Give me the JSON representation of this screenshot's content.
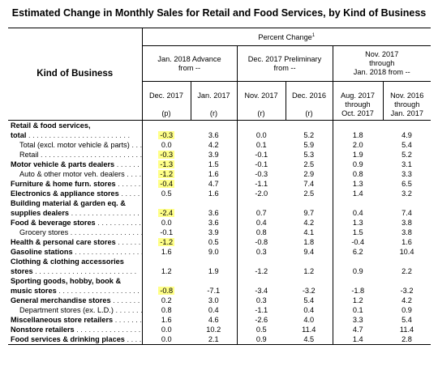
{
  "title": "Estimated Change in Monthly Sales for Retail and Food Services, by Kind of Business",
  "header": {
    "kind_of_business": "Kind of Business",
    "percent_change": "Percent Change",
    "footnote_mark": "1",
    "groups": [
      {
        "line1": "Jan. 2018 Advance",
        "line2": "from --"
      },
      {
        "line1": "Dec. 2017 Preliminary",
        "line2": "from --"
      },
      {
        "line1": "Nov. 2017",
        "line2": "through",
        "line3": "Jan. 2018 from --"
      }
    ],
    "subcols": [
      {
        "line1": "Dec. 2017",
        "line2": "",
        "line3": "(p)"
      },
      {
        "line1": "Jan. 2017",
        "line2": "",
        "line3": "(r)"
      },
      {
        "line1": "Nov. 2017",
        "line2": "",
        "line3": "(r)"
      },
      {
        "line1": "Dec. 2016",
        "line2": "",
        "line3": "(r)"
      },
      {
        "line1": "Aug. 2017",
        "line2": "through",
        "line3": "Oct. 2017"
      },
      {
        "line1": "Nov. 2016",
        "line2": "through",
        "line3": "Jan. 2017"
      }
    ]
  },
  "rows": [
    {
      "label": "Retail & food services,",
      "label2": "total",
      "bold": true,
      "leaders": true,
      "indent": false,
      "hl": true,
      "values": [
        "-0.3",
        "3.6",
        "0.0",
        "5.2",
        "1.8",
        "4.9"
      ]
    },
    {
      "label": "Total (excl. motor vehicle & parts)",
      "indent": true,
      "leaders": true,
      "values": [
        "0.0",
        "4.2",
        "0.1",
        "5.9",
        "2.0",
        "5.4"
      ]
    },
    {
      "label": "Retail",
      "indent": true,
      "leaders": true,
      "hl": true,
      "values": [
        "-0.3",
        "3.9",
        "-0.1",
        "5.3",
        "1.9",
        "5.2"
      ]
    },
    {
      "label": "Motor vehicle & parts dealers",
      "bold": true,
      "leaders": true,
      "hl": true,
      "values": [
        "-1.3",
        "1.5",
        "-0.1",
        "2.5",
        "0.9",
        "3.1"
      ]
    },
    {
      "label": "Auto & other motor veh. dealers",
      "indent": true,
      "leaders": true,
      "hl": true,
      "values": [
        "-1.2",
        "1.6",
        "-0.3",
        "2.9",
        "0.8",
        "3.3"
      ]
    },
    {
      "label": "Furniture & home furn. stores",
      "bold": true,
      "leaders": true,
      "hl": true,
      "values": [
        "-0.4",
        "4.7",
        "-1.1",
        "7.4",
        "1.3",
        "6.5"
      ]
    },
    {
      "label": "Electronics & appliance stores",
      "bold": true,
      "leaders": true,
      "values": [
        "0.5",
        "1.6",
        "-2.0",
        "2.5",
        "1.4",
        "3.2"
      ]
    },
    {
      "label": "Building material & garden eq. &",
      "label2": "supplies dealers",
      "bold": true,
      "leaders": true,
      "hl": true,
      "values": [
        "-2.4",
        "3.6",
        "0.7",
        "9.7",
        "0.4",
        "7.4"
      ]
    },
    {
      "label": "Food & beverage stores",
      "bold": true,
      "leaders": true,
      "values": [
        "0.0",
        "3.6",
        "0.4",
        "4.2",
        "1.3",
        "3.8"
      ]
    },
    {
      "label": "Grocery stores",
      "indent": true,
      "leaders": true,
      "values": [
        "-0.1",
        "3.9",
        "0.8",
        "4.1",
        "1.5",
        "3.8"
      ]
    },
    {
      "label": "Health & personal care stores",
      "bold": true,
      "leaders": true,
      "hl": true,
      "values": [
        "-1.2",
        "0.5",
        "-0.8",
        "1.8",
        "-0.4",
        "1.6"
      ]
    },
    {
      "label": "Gasoline stations",
      "bold": true,
      "leaders": true,
      "values": [
        "1.6",
        "9.0",
        "0.3",
        "9.4",
        "6.2",
        "10.4"
      ]
    },
    {
      "label": "Clothing & clothing accessories",
      "label2": "stores",
      "bold": true,
      "leaders": true,
      "values": [
        "1.2",
        "1.9",
        "-1.2",
        "1.2",
        "0.9",
        "2.2"
      ]
    },
    {
      "label": "Sporting goods, hobby, book &",
      "label2": "music stores",
      "bold": true,
      "leaders": true,
      "hl": true,
      "values": [
        "-0.8",
        "-7.1",
        "-3.4",
        "-3.2",
        "-1.8",
        "-3.2"
      ]
    },
    {
      "label": "General merchandise stores",
      "bold": true,
      "leaders": true,
      "values": [
        "0.2",
        "3.0",
        "0.3",
        "5.4",
        "1.2",
        "4.2"
      ]
    },
    {
      "label": "Department stores (ex. L.D.)",
      "indent": true,
      "leaders": true,
      "values": [
        "0.8",
        "0.4",
        "-1.1",
        "0.4",
        "0.1",
        "0.9"
      ]
    },
    {
      "label": "Miscellaneous store retailers",
      "bold": true,
      "leaders": true,
      "values": [
        "1.6",
        "4.6",
        "-2.6",
        "4.0",
        "3.3",
        "5.4"
      ]
    },
    {
      "label": "Nonstore retailers",
      "bold": true,
      "leaders": true,
      "values": [
        "0.0",
        "10.2",
        "0.5",
        "11.4",
        "4.7",
        "11.4"
      ]
    },
    {
      "label": "Food services & drinking places",
      "bold": true,
      "leaders": true,
      "values": [
        "0.0",
        "2.1",
        "0.9",
        "4.5",
        "1.4",
        "2.8"
      ]
    }
  ]
}
